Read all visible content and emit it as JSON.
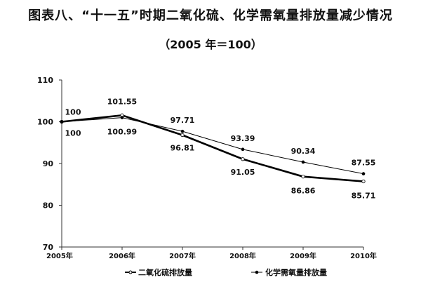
{
  "chart_data": {
    "type": "line",
    "title": "图表八、“十一五”时期二氧化硫、化学需氧量排放量减少情况",
    "subtitle": "（2005 年＝100）",
    "xlabel": "",
    "ylabel": "",
    "categories": [
      "2005年",
      "2006年",
      "2007年",
      "2008年",
      "2009年",
      "2010年"
    ],
    "ylim": [
      70,
      110
    ],
    "yticks": [
      70,
      80,
      90,
      100,
      110
    ],
    "grid": false,
    "legend_position": "bottom",
    "series": [
      {
        "name": "二氧化硫排放量",
        "marker": "open-diamond",
        "values": [
          100,
          101.55,
          96.81,
          91.05,
          86.86,
          85.71
        ],
        "labels": [
          "100",
          "101.55",
          "96.81",
          "91.05",
          "86.86",
          "85.71"
        ]
      },
      {
        "name": "化学需氧量排放量",
        "marker": "filled-diamond",
        "values": [
          100,
          100.99,
          97.71,
          93.39,
          90.34,
          87.55
        ],
        "labels": [
          "100",
          "100.99",
          "97.71",
          "93.39",
          "90.34",
          "87.55"
        ]
      }
    ]
  }
}
